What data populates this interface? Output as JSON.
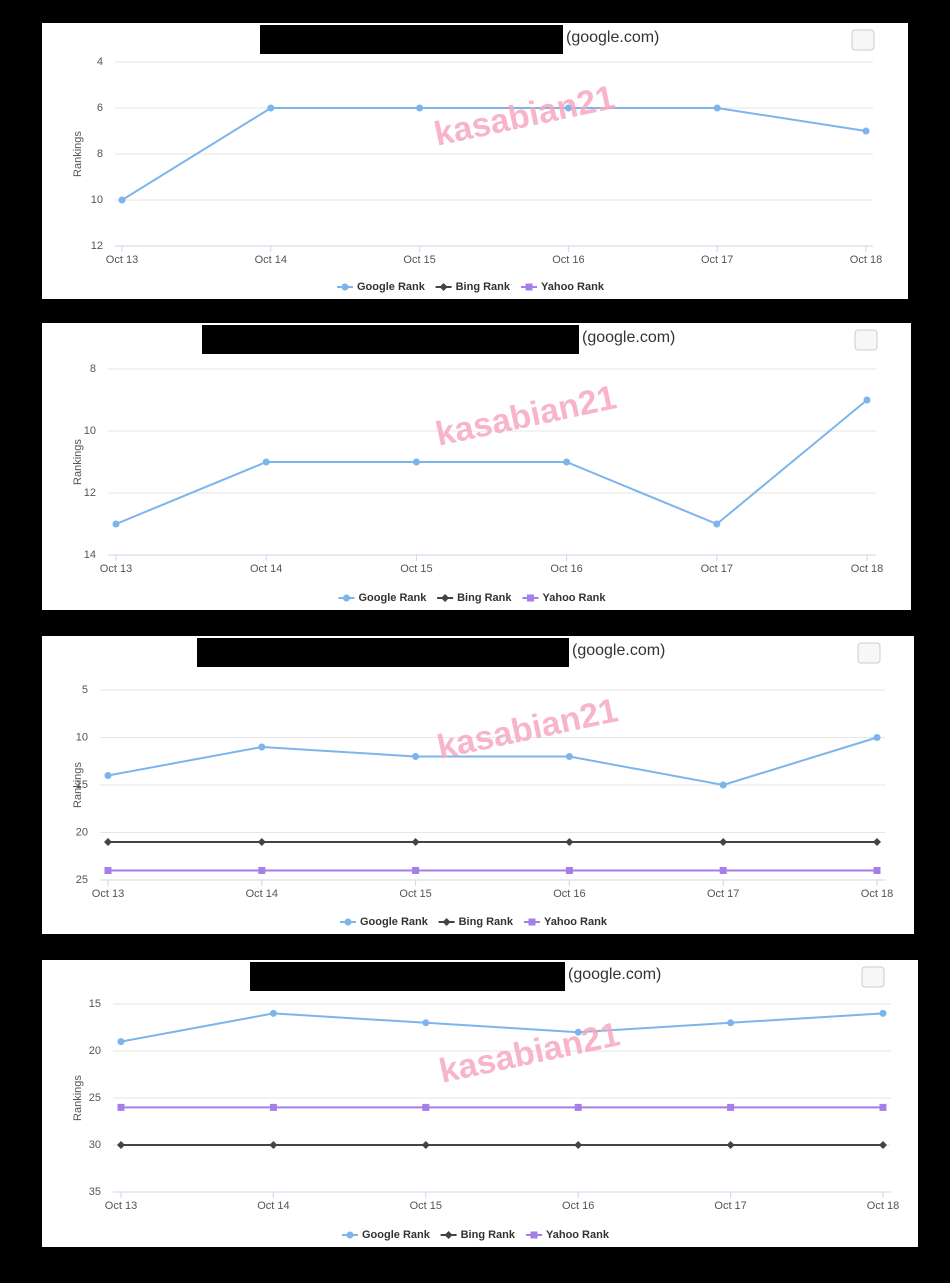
{
  "chart_data": [
    {
      "type": "line",
      "title": "(google.com)",
      "watermark": "kasabian21",
      "y_label": "Rankings",
      "categories": [
        "Oct 13",
        "Oct 14",
        "Oct 15",
        "Oct 16",
        "Oct 17",
        "Oct 18"
      ],
      "ylim": [
        4,
        12
      ],
      "y_reversed": true,
      "yticks": [
        4,
        6,
        8,
        10,
        12
      ],
      "grid": true,
      "legend": "bottom",
      "series": [
        {
          "name": "Google Rank",
          "color": "#7cb5ec",
          "marker": "circle",
          "values": [
            10,
            6,
            6,
            6,
            6,
            7
          ]
        },
        {
          "name": "Bing Rank",
          "color": "#434348",
          "marker": "diamond",
          "values": [
            null,
            null,
            null,
            null,
            null,
            null
          ]
        },
        {
          "name": "Yahoo Rank",
          "color": "#a57ee8",
          "marker": "square",
          "values": [
            null,
            null,
            null,
            null,
            null,
            null
          ]
        }
      ]
    },
    {
      "type": "line",
      "title": "(google.com)",
      "watermark": "kasabian21",
      "y_label": "Rankings",
      "categories": [
        "Oct 13",
        "Oct 14",
        "Oct 15",
        "Oct 16",
        "Oct 17",
        "Oct 18"
      ],
      "ylim": [
        8,
        14
      ],
      "y_reversed": true,
      "yticks": [
        8,
        10,
        12,
        14
      ],
      "grid": true,
      "legend": "bottom",
      "series": [
        {
          "name": "Google Rank",
          "color": "#7cb5ec",
          "marker": "circle",
          "values": [
            13,
            11,
            11,
            11,
            13,
            9
          ]
        },
        {
          "name": "Bing Rank",
          "color": "#434348",
          "marker": "diamond",
          "values": [
            null,
            null,
            null,
            null,
            null,
            null
          ]
        },
        {
          "name": "Yahoo Rank",
          "color": "#a57ee8",
          "marker": "square",
          "values": [
            null,
            null,
            null,
            null,
            null,
            null
          ]
        }
      ]
    },
    {
      "type": "line",
      "title": "(google.com)",
      "watermark": "kasabian21",
      "y_label": "Rankings",
      "categories": [
        "Oct 13",
        "Oct 14",
        "Oct 15",
        "Oct 16",
        "Oct 17",
        "Oct 18"
      ],
      "ylim": [
        5,
        25
      ],
      "y_reversed": true,
      "yticks": [
        5,
        10,
        15,
        20,
        25
      ],
      "grid": true,
      "legend": "bottom",
      "series": [
        {
          "name": "Google Rank",
          "color": "#7cb5ec",
          "marker": "circle",
          "values": [
            14,
            11,
            12,
            12,
            15,
            10
          ]
        },
        {
          "name": "Bing Rank",
          "color": "#434348",
          "marker": "diamond",
          "values": [
            21,
            21,
            21,
            21,
            21,
            21
          ]
        },
        {
          "name": "Yahoo Rank",
          "color": "#a57ee8",
          "marker": "square",
          "values": [
            24,
            24,
            24,
            24,
            24,
            24
          ]
        }
      ]
    },
    {
      "type": "line",
      "title": "(google.com)",
      "watermark": "kasabian21",
      "y_label": "Rankings",
      "categories": [
        "Oct 13",
        "Oct 14",
        "Oct 15",
        "Oct 16",
        "Oct 17",
        "Oct 18"
      ],
      "ylim": [
        15,
        35
      ],
      "y_reversed": true,
      "yticks": [
        15,
        20,
        25,
        30,
        35
      ],
      "grid": true,
      "legend": "bottom",
      "series": [
        {
          "name": "Google Rank",
          "color": "#7cb5ec",
          "marker": "circle",
          "values": [
            19,
            16,
            17,
            18,
            17,
            16
          ]
        },
        {
          "name": "Bing Rank",
          "color": "#434348",
          "marker": "diamond",
          "values": [
            30,
            30,
            30,
            30,
            30,
            30
          ]
        },
        {
          "name": "Yahoo Rank",
          "color": "#a57ee8",
          "marker": "square",
          "values": [
            26,
            26,
            26,
            26,
            26,
            26
          ]
        }
      ]
    }
  ]
}
